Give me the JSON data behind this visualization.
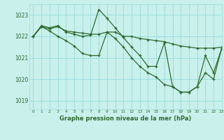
{
  "title": "Graphe pression niveau de la mer (hPa)",
  "background_color": "#caf0ec",
  "grid_color": "#99dddd",
  "line_color": "#2d6a2d",
  "xlim": [
    -0.5,
    23
  ],
  "ylim": [
    1018.6,
    1023.5
  ],
  "yticks": [
    1019,
    1020,
    1021,
    1022,
    1023
  ],
  "xticks": [
    0,
    1,
    2,
    3,
    4,
    5,
    6,
    7,
    8,
    9,
    10,
    11,
    12,
    13,
    14,
    15,
    16,
    17,
    18,
    19,
    20,
    21,
    22,
    23
  ],
  "series": [
    [
      1022.0,
      1022.5,
      1022.4,
      1022.5,
      1022.2,
      1022.1,
      1022.0,
      1022.05,
      1023.25,
      1022.85,
      1022.4,
      1021.95,
      1021.5,
      1021.1,
      1020.6,
      1020.6,
      1021.7,
      1019.65,
      1019.4,
      1019.4,
      1019.65,
      1021.1,
      1020.3,
      1021.45
    ],
    [
      1022.0,
      1022.45,
      1022.35,
      1022.45,
      1022.25,
      1022.2,
      1022.15,
      1022.1,
      1022.1,
      1022.2,
      1022.2,
      1022.0,
      1022.0,
      1021.9,
      1021.85,
      1021.8,
      1021.75,
      1021.65,
      1021.55,
      1021.5,
      1021.45,
      1021.45,
      1021.45,
      1021.5
    ],
    [
      1022.0,
      1022.45,
      1022.25,
      1022.0,
      1021.8,
      1021.55,
      1021.2,
      1021.1,
      1021.1,
      1022.2,
      1021.9,
      1021.5,
      1021.0,
      1020.6,
      1020.3,
      1020.1,
      1019.75,
      1019.65,
      1019.4,
      1019.4,
      1019.65,
      1020.3,
      1020.0,
      1021.45
    ]
  ]
}
